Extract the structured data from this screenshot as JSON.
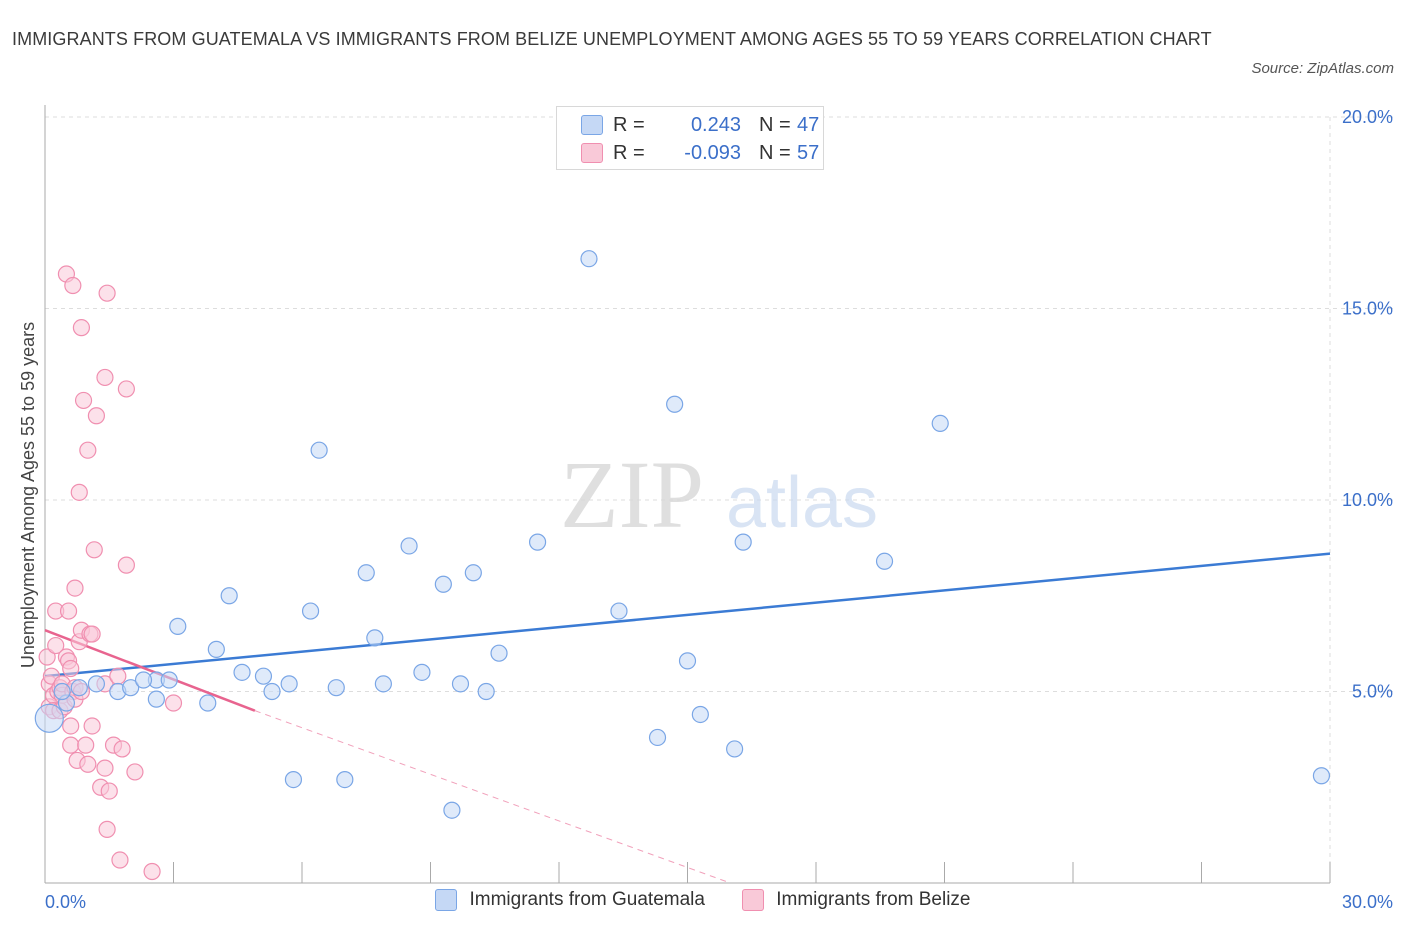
{
  "header": {
    "title": "IMMIGRANTS FROM GUATEMALA VS IMMIGRANTS FROM BELIZE UNEMPLOYMENT AMONG AGES 55 TO 59 YEARS CORRELATION CHART",
    "source": "Source: ZipAtlas.com"
  },
  "watermark": {
    "zip": "ZIP",
    "atlas": "atlas"
  },
  "stats": {
    "rows": [
      {
        "r_label": "R =",
        "r_value": "0.243",
        "n_label": "N =",
        "n_value": "47",
        "color": "#c5d8f5",
        "border": "#7aa6e6"
      },
      {
        "r_label": "R =",
        "r_value": "-0.093",
        "n_label": "N =",
        "n_value": "57",
        "color": "#f9c9d8",
        "border": "#f08fb0"
      }
    ]
  },
  "legend": {
    "guatemala": "Immigrants from Guatemala",
    "belize": "Immigrants from Belize"
  },
  "colors": {
    "blue": "#3b7bd4",
    "blue_fill": "#c5d8f5",
    "pink": "#e8648f",
    "pink_fill": "#f9c9d8",
    "axis_label": "#3b6fc9",
    "grid": "#dddddd"
  },
  "chart_data": {
    "type": "scatter",
    "title": "IMMIGRANTS FROM GUATEMALA VS IMMIGRANTS FROM BELIZE UNEMPLOYMENT AMONG AGES 55 TO 59 YEARS CORRELATION CHART",
    "xlabel": "",
    "ylabel": "Unemployment Among Ages 55 to 59 years",
    "xlim": [
      0,
      30
    ],
    "ylim": [
      0,
      20
    ],
    "x_tick_labels": [
      "0.0%",
      "30.0%"
    ],
    "y_ticks": [
      5,
      10,
      15,
      20
    ],
    "y_tick_labels": [
      "5.0%",
      "10.0%",
      "15.0%",
      "20.0%"
    ],
    "grid": true,
    "series": [
      {
        "name": "Immigrants from Guatemala",
        "color": "#3b7bd4",
        "r": 0.243,
        "n": 47,
        "trend": {
          "x": [
            0,
            30
          ],
          "y": [
            5.4,
            8.6
          ],
          "dashed_extension": false
        },
        "points": [
          [
            0.1,
            4.3
          ],
          [
            0.5,
            4.7
          ],
          [
            0.4,
            5.0
          ],
          [
            1.2,
            5.2
          ],
          [
            1.7,
            5.0
          ],
          [
            2.0,
            5.1
          ],
          [
            2.6,
            5.3
          ],
          [
            2.3,
            5.3
          ],
          [
            2.6,
            4.8
          ],
          [
            2.9,
            5.3
          ],
          [
            3.1,
            6.7
          ],
          [
            3.8,
            4.7
          ],
          [
            4.0,
            6.1
          ],
          [
            4.3,
            7.5
          ],
          [
            4.6,
            5.5
          ],
          [
            5.1,
            5.4
          ],
          [
            5.3,
            5.0
          ],
          [
            5.7,
            5.2
          ],
          [
            5.8,
            2.7
          ],
          [
            6.2,
            7.1
          ],
          [
            6.4,
            11.3
          ],
          [
            6.8,
            5.1
          ],
          [
            7.0,
            2.7
          ],
          [
            7.5,
            8.1
          ],
          [
            7.7,
            6.4
          ],
          [
            7.9,
            5.2
          ],
          [
            8.5,
            8.8
          ],
          [
            8.8,
            5.5
          ],
          [
            9.3,
            7.8
          ],
          [
            9.5,
            1.9
          ],
          [
            9.7,
            5.2
          ],
          [
            10.0,
            8.1
          ],
          [
            10.3,
            5.0
          ],
          [
            10.6,
            6.0
          ],
          [
            11.5,
            8.9
          ],
          [
            12.7,
            16.3
          ],
          [
            13.4,
            7.1
          ],
          [
            14.3,
            3.8
          ],
          [
            14.7,
            12.5
          ],
          [
            15.0,
            5.8
          ],
          [
            15.3,
            4.4
          ],
          [
            16.1,
            3.5
          ],
          [
            16.3,
            8.9
          ],
          [
            19.6,
            8.4
          ],
          [
            20.9,
            12.0
          ],
          [
            29.8,
            2.8
          ],
          [
            0.8,
            5.1
          ]
        ]
      },
      {
        "name": "Immigrants from Belize",
        "color": "#e8648f",
        "r": -0.093,
        "n": 57,
        "trend": {
          "x": [
            0,
            4.9
          ],
          "y": [
            6.6,
            4.5
          ],
          "dashed_to": [
            16.0,
            0.0
          ]
        },
        "points": [
          [
            0.05,
            5.9
          ],
          [
            0.1,
            5.2
          ],
          [
            0.1,
            4.6
          ],
          [
            0.15,
            5.4
          ],
          [
            0.2,
            4.9
          ],
          [
            0.2,
            4.5
          ],
          [
            0.25,
            7.1
          ],
          [
            0.25,
            6.2
          ],
          [
            0.3,
            5.0
          ],
          [
            0.35,
            4.5
          ],
          [
            0.35,
            5.1
          ],
          [
            0.4,
            4.9
          ],
          [
            0.4,
            5.2
          ],
          [
            0.45,
            4.6
          ],
          [
            0.5,
            15.9
          ],
          [
            0.5,
            5.9
          ],
          [
            0.55,
            7.1
          ],
          [
            0.55,
            5.8
          ],
          [
            0.6,
            5.6
          ],
          [
            0.6,
            4.1
          ],
          [
            0.6,
            3.6
          ],
          [
            0.65,
            15.6
          ],
          [
            0.65,
            5.0
          ],
          [
            0.7,
            7.7
          ],
          [
            0.7,
            5.1
          ],
          [
            0.7,
            4.8
          ],
          [
            0.75,
            3.2
          ],
          [
            0.8,
            6.3
          ],
          [
            0.85,
            6.6
          ],
          [
            0.85,
            5.0
          ],
          [
            0.8,
            10.2
          ],
          [
            0.85,
            14.5
          ],
          [
            0.9,
            12.6
          ],
          [
            0.95,
            3.6
          ],
          [
            1.0,
            11.3
          ],
          [
            1.0,
            3.1
          ],
          [
            1.05,
            6.5
          ],
          [
            1.1,
            6.5
          ],
          [
            1.1,
            4.1
          ],
          [
            1.15,
            8.7
          ],
          [
            1.2,
            12.2
          ],
          [
            1.3,
            2.5
          ],
          [
            1.4,
            3.0
          ],
          [
            1.4,
            5.2
          ],
          [
            1.4,
            13.2
          ],
          [
            1.45,
            15.4
          ],
          [
            1.45,
            1.4
          ],
          [
            1.5,
            2.4
          ],
          [
            1.6,
            3.6
          ],
          [
            1.7,
            5.4
          ],
          [
            1.75,
            0.6
          ],
          [
            1.8,
            3.5
          ],
          [
            1.9,
            12.9
          ],
          [
            1.9,
            8.3
          ],
          [
            2.1,
            2.9
          ],
          [
            2.5,
            0.3
          ],
          [
            3.0,
            4.7
          ]
        ]
      }
    ]
  }
}
